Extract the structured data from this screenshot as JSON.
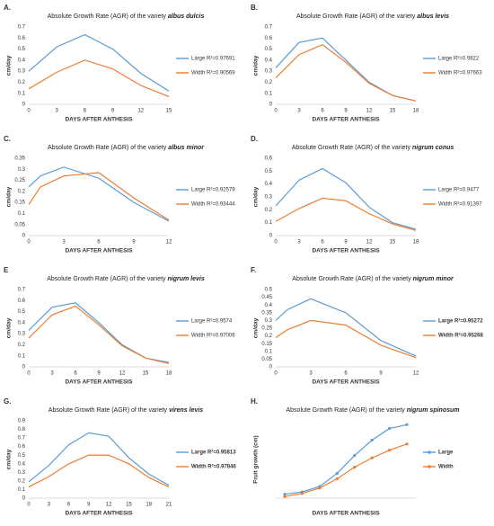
{
  "chart_data": [
    {
      "type": "line",
      "label": "A.",
      "title": "Absolute Growth Rate (AGR) of the variety",
      "variety": "albus dulcis",
      "ylabel": "cm/day",
      "xlabel": "DAYS AFTER ANTHESIS",
      "x": [
        0,
        3,
        6,
        9,
        12,
        15
      ],
      "xlim": [
        0,
        15
      ],
      "xticks": [
        0,
        3,
        6,
        9,
        12,
        15
      ],
      "ylim": [
        0,
        0.7
      ],
      "yticks": [
        0,
        0.1,
        0.2,
        0.3,
        0.4,
        0.5,
        0.6,
        0.7
      ],
      "series": [
        {
          "name": "Large R²=0.97691",
          "color": "#5b9bd5",
          "values": [
            0.3,
            0.52,
            0.63,
            0.5,
            0.28,
            0.12
          ]
        },
        {
          "name": "Width R²=0.90569",
          "color": "#ed7d31",
          "values": [
            0.14,
            0.29,
            0.4,
            0.32,
            0.17,
            0.07
          ]
        }
      ]
    },
    {
      "type": "line",
      "label": "B.",
      "title": "Absolute Growth Rate (AGR) of the variety",
      "variety": "albus levis",
      "ylabel": "cm/day",
      "xlabel": "DAYS AFTER ANTHESIS",
      "x": [
        0,
        3,
        6,
        9,
        12,
        15,
        18
      ],
      "xlim": [
        0,
        18
      ],
      "xticks": [
        0,
        3,
        6,
        9,
        12,
        15,
        18
      ],
      "ylim": [
        0,
        0.7
      ],
      "yticks": [
        0,
        0.1,
        0.2,
        0.3,
        0.4,
        0.5,
        0.6,
        0.7
      ],
      "series": [
        {
          "name": "Large R²=0.9822",
          "color": "#5b9bd5",
          "values": [
            0.33,
            0.56,
            0.6,
            0.4,
            0.2,
            0.08,
            0.03
          ]
        },
        {
          "name": "Width R²=0.97663",
          "color": "#ed7d31",
          "values": [
            0.24,
            0.45,
            0.54,
            0.38,
            0.19,
            0.08,
            0.03
          ]
        }
      ]
    },
    {
      "type": "line",
      "label": "C.",
      "title": "Absolute Growth Rate (AGR) of the variety",
      "variety": "albus minor",
      "ylabel": "cm/day",
      "xlabel": "DAYS AFTER ANTHESIS",
      "x": [
        0,
        1,
        3,
        6,
        9,
        12
      ],
      "xlim": [
        0,
        12
      ],
      "xticks": [
        0,
        3,
        6,
        9,
        12
      ],
      "ylim": [
        0,
        0.35
      ],
      "yticks": [
        0,
        0.05,
        0.1,
        0.15,
        0.2,
        0.25,
        0.3,
        0.35
      ],
      "series": [
        {
          "name": "Large R²=0.92579",
          "color": "#5b9bd5",
          "values": [
            0.22,
            0.27,
            0.31,
            0.26,
            0.15,
            0.065
          ]
        },
        {
          "name": "Width R²=0.93444",
          "color": "#ed7d31",
          "values": [
            0.14,
            0.22,
            0.27,
            0.285,
            0.17,
            0.07
          ]
        }
      ]
    },
    {
      "type": "line",
      "label": "D.",
      "title": "Absolute Growth Rate (AGR) of the variety",
      "variety": "nigrum conus",
      "ylabel": "cm/day",
      "xlabel": "DAYS AFTER ANTHESIS",
      "x": [
        0,
        3,
        6,
        9,
        12,
        15,
        18
      ],
      "xlim": [
        0,
        18
      ],
      "xticks": [
        0,
        3,
        6,
        9,
        12,
        15,
        18
      ],
      "ylim": [
        0,
        0.6
      ],
      "yticks": [
        0,
        0.1,
        0.2,
        0.3,
        0.4,
        0.5,
        0.6
      ],
      "series": [
        {
          "name": "Large R²=0.9477",
          "color": "#5b9bd5",
          "values": [
            0.23,
            0.43,
            0.52,
            0.41,
            0.22,
            0.1,
            0.05
          ]
        },
        {
          "name": "Width R²=0.91397",
          "color": "#ed7d31",
          "values": [
            0.11,
            0.21,
            0.29,
            0.27,
            0.17,
            0.09,
            0.04
          ]
        }
      ]
    },
    {
      "type": "line",
      "label": "E",
      "title": "Absolute Growth Rate (AGR) of the variety",
      "variety": "nigrum levis",
      "ylabel": "cm/day",
      "xlabel": "DAYS AFTER ANTHESIS",
      "x": [
        0,
        3,
        6,
        9,
        12,
        15,
        18
      ],
      "xlim": [
        0,
        18
      ],
      "xticks": [
        0,
        3,
        6,
        9,
        12,
        15,
        18
      ],
      "ylim": [
        0,
        0.7
      ],
      "yticks": [
        0,
        0.1,
        0.2,
        0.3,
        0.4,
        0.5,
        0.6,
        0.7
      ],
      "series": [
        {
          "name": "Large R²=0.9574",
          "color": "#5b9bd5",
          "values": [
            0.33,
            0.54,
            0.58,
            0.4,
            0.2,
            0.08,
            0.04
          ]
        },
        {
          "name": "Width R²=0.97006",
          "color": "#ed7d31",
          "values": [
            0.26,
            0.47,
            0.55,
            0.38,
            0.19,
            0.08,
            0.03
          ]
        }
      ]
    },
    {
      "type": "line",
      "label": "F.",
      "title": "Absolute Growth Rate (AGR) of the variety",
      "variety": "nigrum minor",
      "ylabel": "cm/day",
      "xlabel": "DAYS AFTER ANTHESIS",
      "x": [
        0,
        1,
        3,
        6,
        9,
        12
      ],
      "xlim": [
        0,
        12
      ],
      "xticks": [
        0,
        3,
        6,
        9,
        12
      ],
      "ylim": [
        0,
        0.5
      ],
      "yticks": [
        0,
        0.05,
        0.1,
        0.15,
        0.2,
        0.25,
        0.3,
        0.35,
        0.4,
        0.45,
        0.5
      ],
      "legend_bold": true,
      "series": [
        {
          "name": "Large R²=0.95272",
          "color": "#5b9bd5",
          "values": [
            0.3,
            0.37,
            0.44,
            0.35,
            0.17,
            0.07
          ]
        },
        {
          "name": "Width R²=0.95268",
          "color": "#ed7d31",
          "values": [
            0.19,
            0.24,
            0.3,
            0.27,
            0.14,
            0.06
          ]
        }
      ]
    },
    {
      "type": "line",
      "label": "G.",
      "title": "Absolute Growth Rate (AGR) of the variety",
      "variety": "virens levis",
      "ylabel": "cm/day",
      "xlabel": "DAYS AFTER ANTHESIS",
      "x": [
        0,
        3,
        6,
        9,
        12,
        15,
        18,
        21
      ],
      "xlim": [
        0,
        21
      ],
      "xticks": [
        0,
        3,
        6,
        9,
        12,
        15,
        18,
        21
      ],
      "ylim": [
        0,
        0.9
      ],
      "yticks": [
        0,
        0.1,
        0.2,
        0.3,
        0.4,
        0.5,
        0.6,
        0.7,
        0.8,
        0.9
      ],
      "legend_bold": true,
      "series": [
        {
          "name": "Large R²=0.95813",
          "color": "#5b9bd5",
          "values": [
            0.19,
            0.38,
            0.62,
            0.76,
            0.72,
            0.47,
            0.28,
            0.15
          ]
        },
        {
          "name": "Width R²=0.97846",
          "color": "#ed7d31",
          "values": [
            0.13,
            0.25,
            0.4,
            0.5,
            0.5,
            0.4,
            0.24,
            0.13
          ]
        }
      ]
    },
    {
      "type": "line",
      "label": "H.",
      "title": "Absolute Growth Rate (AGR) of the variety",
      "variety": "nigrum spinosum",
      "ylabel": "Fruit growth (cm)",
      "xlabel": "DAYS AFTER ANTHESIS",
      "categories": [
        null,
        null,
        null,
        null,
        null,
        null,
        null,
        null
      ],
      "ylim": [
        0,
        1
      ],
      "markers": true,
      "legend_bold": true,
      "series": [
        {
          "name": "Large",
          "color": "#5b9bd5",
          "values": [
            0.05,
            0.08,
            0.15,
            0.32,
            0.55,
            0.75,
            0.9,
            0.95
          ]
        },
        {
          "name": "Width",
          "color": "#ed7d31",
          "values": [
            0.02,
            0.06,
            0.13,
            0.25,
            0.4,
            0.52,
            0.62,
            0.7
          ]
        }
      ]
    }
  ]
}
